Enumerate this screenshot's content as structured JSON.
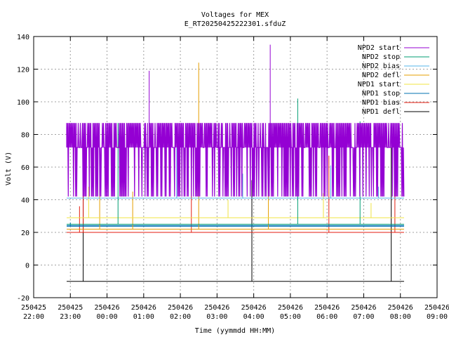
{
  "chart_data": {
    "type": "line",
    "title": "Voltages for MEX",
    "subtitle": "E_RT20250425222301.sfduZ",
    "xlabel": "Time (yymmdd HH:MM)",
    "ylabel": "Volt (V)",
    "ylim": [
      -20,
      140
    ],
    "yticks": [
      -20,
      0,
      20,
      40,
      60,
      80,
      100,
      120,
      140
    ],
    "xlim_hours": [
      22,
      33
    ],
    "xticks": [
      {
        "date": "250425",
        "time": "22:00",
        "hour": 22
      },
      {
        "date": "250425",
        "time": "23:00",
        "hour": 23
      },
      {
        "date": "250426",
        "time": "00:00",
        "hour": 24
      },
      {
        "date": "250426",
        "time": "01:00",
        "hour": 25
      },
      {
        "date": "250426",
        "time": "02:00",
        "hour": 26
      },
      {
        "date": "250426",
        "time": "03:00",
        "hour": 27
      },
      {
        "date": "250426",
        "time": "04:00",
        "hour": 28
      },
      {
        "date": "250426",
        "time": "05:00",
        "hour": 29
      },
      {
        "date": "250426",
        "time": "06:00",
        "hour": 30
      },
      {
        "date": "250426",
        "time": "07:00",
        "hour": 31
      },
      {
        "date": "250426",
        "time": "08:00",
        "hour": 32
      },
      {
        "date": "250426",
        "time": "09:00",
        "hour": 33
      }
    ],
    "grid": true,
    "legend_position": "top-right",
    "series": [
      {
        "name": "NPD2 start",
        "color": "#9400d3",
        "baseline": 72,
        "high": 87,
        "low": 42,
        "spikes": [
          [
            25.15,
            119
          ],
          [
            28.45,
            135
          ]
        ]
      },
      {
        "name": "NPD2 stop",
        "color": "#009e73",
        "baseline": 25,
        "spikes": [
          [
            29.2,
            102
          ],
          [
            30.9,
            88
          ],
          [
            24.3,
            87
          ]
        ]
      },
      {
        "name": "NPD2 bias",
        "color": "#56b4e9",
        "baseline": 41,
        "spikes": [
          [
            27.7,
            56
          ],
          [
            25.9,
            72
          ],
          [
            30.1,
            61
          ],
          [
            31.4,
            48
          ]
        ]
      },
      {
        "name": "NPD2 defl",
        "color": "#e69f00",
        "baseline": 22,
        "spikes": [
          [
            26.5,
            124
          ],
          [
            23.8,
            58
          ],
          [
            28.4,
            62
          ],
          [
            24.7,
            45
          ]
        ]
      },
      {
        "name": "NPD1 start",
        "color": "#f0e442",
        "baseline": 29,
        "spikes": [
          [
            23.5,
            48
          ],
          [
            27.3,
            40
          ],
          [
            29.9,
            44
          ],
          [
            31.2,
            38
          ]
        ]
      },
      {
        "name": "NPD1 stop",
        "color": "#0072b2",
        "baseline": 24,
        "spikes": [
          [
            23.0,
            26
          ]
        ]
      },
      {
        "name": "NPD1 bias",
        "color": "#e51e10",
        "baseline": 20,
        "spikes": [
          [
            26.3,
            72
          ],
          [
            23.35,
            67
          ],
          [
            23.25,
            36
          ],
          [
            30.05,
            67
          ],
          [
            31.85,
            71
          ]
        ]
      },
      {
        "name": "NPD1 defl",
        "color": "#000000",
        "baseline": -10,
        "spikes": [
          [
            23.35,
            52
          ],
          [
            27.95,
            52
          ],
          [
            31.75,
            72
          ]
        ]
      }
    ],
    "x_start_hour": 22.9,
    "x_end_hour": 32.1
  }
}
